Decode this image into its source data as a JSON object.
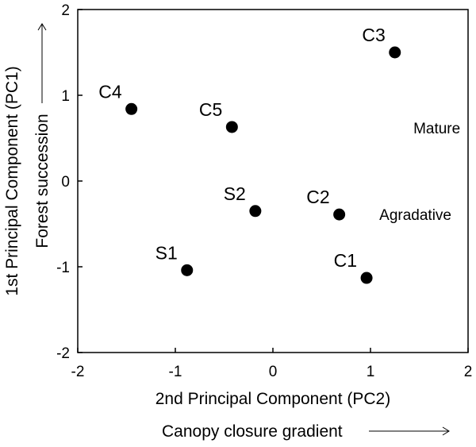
{
  "chart_data": {
    "type": "scatter",
    "xlabel": "2nd Principal Component (PC2)",
    "ylabel": "1st Principal Component (PC1)",
    "x_gradient_label": "Canopy closure gradient",
    "y_gradient_label": "Forest succession",
    "xlim": [
      -2,
      2
    ],
    "ylim": [
      -2,
      2
    ],
    "x_ticks": [
      "-2",
      "-1",
      "0",
      "1",
      "2"
    ],
    "y_ticks": [
      "-2",
      "-1",
      "0",
      "1",
      "2"
    ],
    "grid": false,
    "legend": "none",
    "points": [
      {
        "label": "C3",
        "x": 1.25,
        "y": 1.5
      },
      {
        "label": "C4",
        "x": -1.45,
        "y": 0.84
      },
      {
        "label": "C5",
        "x": -0.42,
        "y": 0.63
      },
      {
        "label": "S2",
        "x": -0.18,
        "y": -0.35
      },
      {
        "label": "C2",
        "x": 0.68,
        "y": -0.39
      },
      {
        "label": "S1",
        "x": -0.88,
        "y": -1.04
      },
      {
        "label": "C1",
        "x": 0.96,
        "y": -1.13
      }
    ],
    "annotations": [
      {
        "text": "Mature",
        "x": 1.68,
        "y": 0.62
      },
      {
        "text": "Agradative",
        "x": 1.46,
        "y": -0.39
      }
    ],
    "marker_color": "#000000"
  }
}
